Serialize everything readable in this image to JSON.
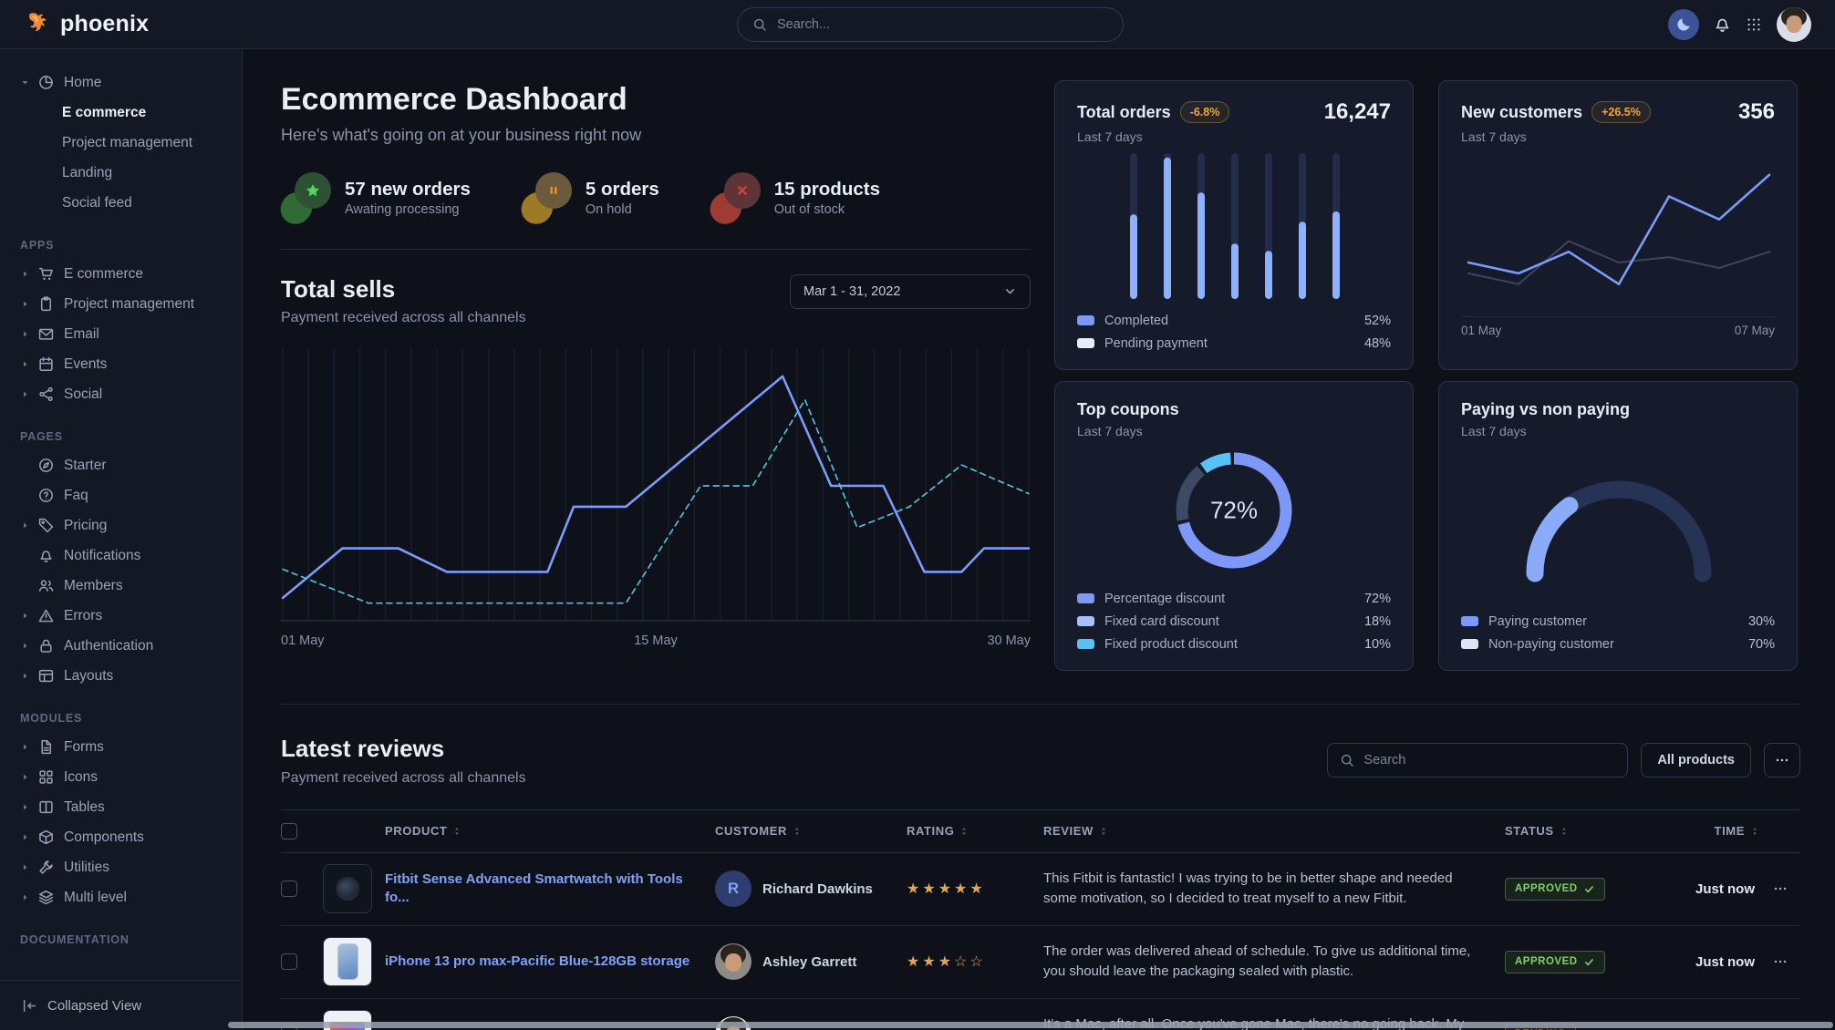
{
  "navbar": {
    "brand": "phoenix",
    "search_placeholder": "Search..."
  },
  "sidebar": {
    "home": {
      "label": "Home",
      "icon": "pie",
      "children": [
        {
          "label": "E commerce",
          "active": true
        },
        {
          "label": "Project management",
          "active": false
        },
        {
          "label": "Landing",
          "active": false
        },
        {
          "label": "Social feed",
          "active": false
        }
      ]
    },
    "sections": [
      {
        "label": "APPS",
        "items": [
          {
            "label": "E commerce",
            "icon": "cart",
            "caret": true
          },
          {
            "label": "Project management",
            "icon": "clipboard",
            "caret": true
          },
          {
            "label": "Email",
            "icon": "mail",
            "caret": true
          },
          {
            "label": "Events",
            "icon": "calendar",
            "caret": true
          },
          {
            "label": "Social",
            "icon": "share",
            "caret": true
          }
        ]
      },
      {
        "label": "PAGES",
        "items": [
          {
            "label": "Starter",
            "icon": "compass",
            "caret": false
          },
          {
            "label": "Faq",
            "icon": "question",
            "caret": false
          },
          {
            "label": "Pricing",
            "icon": "tag",
            "caret": true
          },
          {
            "label": "Notifications",
            "icon": "bell",
            "caret": false
          },
          {
            "label": "Members",
            "icon": "users",
            "caret": false
          },
          {
            "label": "Errors",
            "icon": "warning",
            "caret": true
          },
          {
            "label": "Authentication",
            "icon": "lock",
            "caret": true
          },
          {
            "label": "Layouts",
            "icon": "layout",
            "caret": true
          }
        ]
      },
      {
        "label": "MODULES",
        "items": [
          {
            "label": "Forms",
            "icon": "file",
            "caret": true
          },
          {
            "label": "Icons",
            "icon": "grid4",
            "caret": true
          },
          {
            "label": "Tables",
            "icon": "columns",
            "caret": true
          },
          {
            "label": "Components",
            "icon": "box",
            "caret": true
          },
          {
            "label": "Utilities",
            "icon": "wrench",
            "caret": true
          },
          {
            "label": "Multi level",
            "icon": "layers",
            "caret": true
          }
        ]
      },
      {
        "label": "DOCUMENTATION",
        "items": []
      }
    ],
    "footer_label": "Collapsed View"
  },
  "header": {
    "title": "Ecommerce Dashboard",
    "subtitle": "Here's what's going on at your business right now"
  },
  "stats": [
    {
      "title": "57 new orders",
      "subtitle": "Awating processing",
      "icon": "star",
      "circle_bg": "#2c5233",
      "icon_color": "#53d45f",
      "blob_color": "#2e6b35"
    },
    {
      "title": "5 orders",
      "subtitle": "On hold",
      "icon": "pause",
      "circle_bg": "#6b5b3d",
      "icon_color": "#e58f2e",
      "blob_color": "#9c7a27"
    },
    {
      "title": "15 products",
      "subtitle": "Out of stock",
      "icon": "xmark",
      "circle_bg": "#5d3437",
      "icon_color": "#d8403c",
      "blob_color": "#a03a34"
    }
  ],
  "total_sells": {
    "title": "Total sells",
    "subtitle": "Payment received across all channels",
    "date_range": "Mar 1 - 31, 2022",
    "chart_data": {
      "type": "line",
      "x_axis_labels": [
        "01 May",
        "15 May",
        "30 May"
      ],
      "y_range": [
        0,
        100
      ],
      "gridlines": "vertical",
      "series": [
        {
          "name": "sells",
          "style": "solid",
          "color": "#7d9bfa",
          "points": [
            [
              0,
              7
            ],
            [
              8,
              26
            ],
            [
              15.5,
              26
            ],
            [
              22,
              17
            ],
            [
              35.5,
              17
            ],
            [
              39,
              42
            ],
            [
              46,
              42
            ],
            [
              67,
              92
            ],
            [
              73.5,
              50
            ],
            [
              80.5,
              50
            ],
            [
              86,
              17
            ],
            [
              91,
              17
            ],
            [
              94,
              26
            ],
            [
              100,
              26
            ]
          ]
        },
        {
          "name": "comparison",
          "style": "dashed",
          "color": "#4fc0da",
          "points": [
            [
              0,
              18
            ],
            [
              11.5,
              5
            ],
            [
              46,
              5
            ],
            [
              56,
              50
            ],
            [
              63,
              50
            ],
            [
              70,
              83
            ],
            [
              77,
              34
            ],
            [
              84,
              42
            ],
            [
              91,
              58
            ],
            [
              100,
              47
            ]
          ]
        }
      ]
    }
  },
  "cards": {
    "total_orders": {
      "title": "Total orders",
      "badge": "-6.8%",
      "value": "16,247",
      "period": "Last 7 days",
      "chart_data": {
        "type": "bar",
        "values_pct": [
          58,
          97,
          73,
          38,
          33,
          53,
          60
        ],
        "bar_color": "#8fb0fb",
        "track_color": "#232c49"
      },
      "legend": [
        {
          "label": "Completed",
          "value": "52%",
          "swatch": "#7d98f9"
        },
        {
          "label": "Pending payment",
          "value": "48%",
          "swatch": "#e9edf7"
        }
      ]
    },
    "new_customers": {
      "title": "New customers",
      "badge": "+26.5%",
      "value": "356",
      "period": "Last 7 days",
      "chart_data": {
        "type": "line",
        "x_labels": [
          "01 May",
          "07 May"
        ],
        "series": [
          {
            "name": "previous",
            "color": "#3d465c",
            "values": [
              19,
              11,
              43,
              27,
              31,
              23,
              35
            ]
          },
          {
            "name": "current",
            "color": "#7d9bfa",
            "values": [
              27,
              19,
              35,
              11,
              76,
              59,
              92
            ]
          }
        ]
      }
    },
    "top_coupons": {
      "title": "Top coupons",
      "period": "Last 7 days",
      "center_label": "72%",
      "chart_data": {
        "type": "donut",
        "segments": [
          {
            "label": "Percentage discount",
            "value": 72,
            "color": "#7d98f9",
            "swatch": "#7d98f9"
          },
          {
            "label": "Fixed card discount",
            "value": 18,
            "color": "#3e4a63",
            "swatch": "#a9befb"
          },
          {
            "label": "Fixed product discount",
            "value": 10,
            "color": "#57c3f4",
            "swatch": "#57c3f4"
          }
        ]
      }
    },
    "paying": {
      "title": "Paying vs non paying",
      "period": "Last 7 days",
      "chart_data": {
        "type": "gauge",
        "segments": [
          {
            "label": "Paying customer",
            "value": 30,
            "color": "#8babf9",
            "swatch": "#7d98f9"
          },
          {
            "label": "Non-paying customer",
            "value": 70,
            "color": "#263354",
            "swatch": "#dde6f5"
          }
        ]
      }
    }
  },
  "reviews": {
    "title": "Latest reviews",
    "subtitle": "Payment received across all channels",
    "search_placeholder": "Search",
    "all_products_label": "All products",
    "columns": [
      "PRODUCT",
      "CUSTOMER",
      "RATING",
      "REVIEW",
      "STATUS",
      "TIME"
    ],
    "rows": [
      {
        "product": "Fitbit Sense Advanced Smartwatch with Tools fo...",
        "thumb": "smartwatch-dark",
        "customer": "Richard Dawkins",
        "avatar": "initial-R",
        "rating": 5,
        "review": "This Fitbit is fantastic! I was trying to be in better shape and needed some motivation, so I decided to treat myself to a new Fitbit.",
        "status": "APPROVED",
        "status_style": "success",
        "time": "Just now"
      },
      {
        "product": "iPhone 13 pro max-Pacific Blue-128GB storage",
        "thumb": "iphone-blue",
        "customer": "Ashley Garrett",
        "avatar": "photo-dark",
        "rating": 3,
        "review": "The order was delivered ahead of schedule. To give us additional time, you should leave the packaging sealed with plastic.",
        "status": "APPROVED",
        "status_style": "success",
        "time": "Just now"
      },
      {
        "product": "",
        "thumb": "macbook-colorful",
        "customer": "",
        "avatar": "photo-light",
        "rating": 0,
        "review": "It's a Mac, after all. Once you've gone Mac, there's no going back. My first Mac lasted...",
        "status": "PENDING",
        "status_style": "warning",
        "time": ""
      }
    ]
  }
}
